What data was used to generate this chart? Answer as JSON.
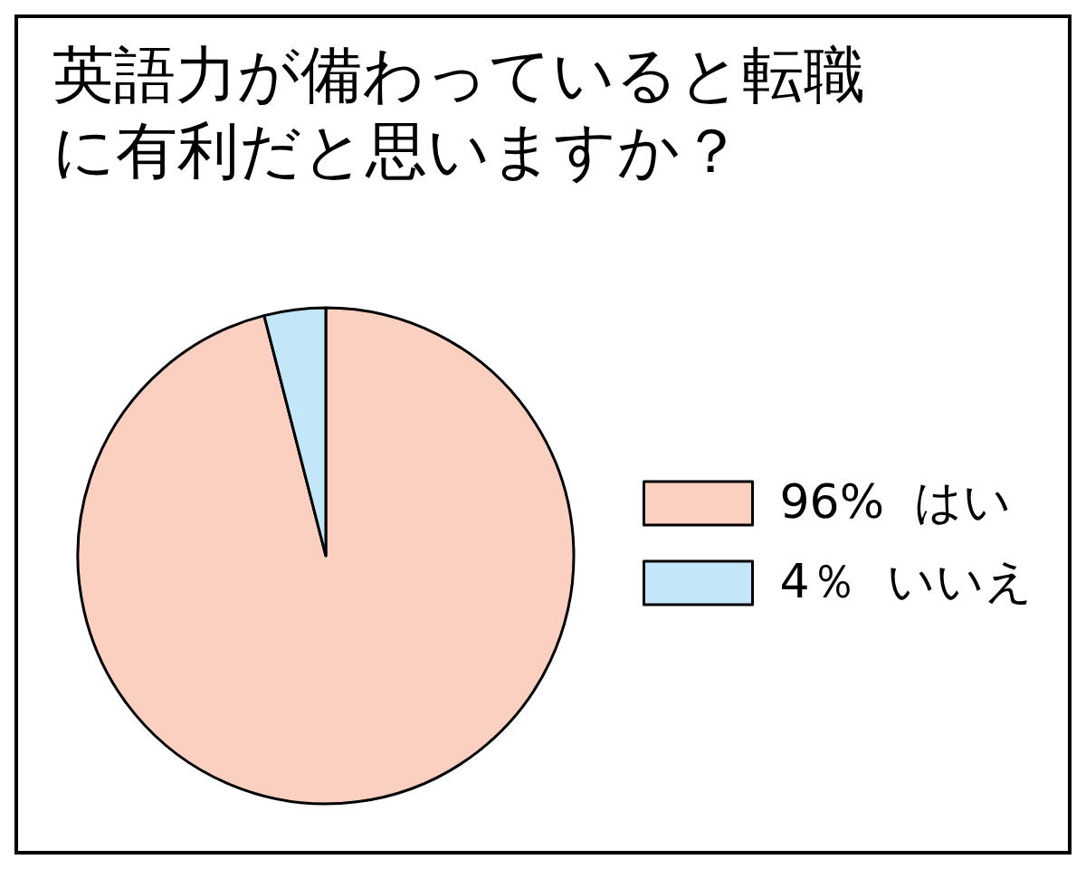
{
  "chart_data": {
    "type": "pie",
    "title": "英語力が備わっていると転職に有利だと思いますか？",
    "categories": [
      "はい",
      "いいえ"
    ],
    "values": [
      96,
      4
    ],
    "value_labels": [
      "96%",
      "4％"
    ],
    "colors": [
      "#fbd0c0",
      "#c4e6f9"
    ],
    "legend": "right"
  }
}
